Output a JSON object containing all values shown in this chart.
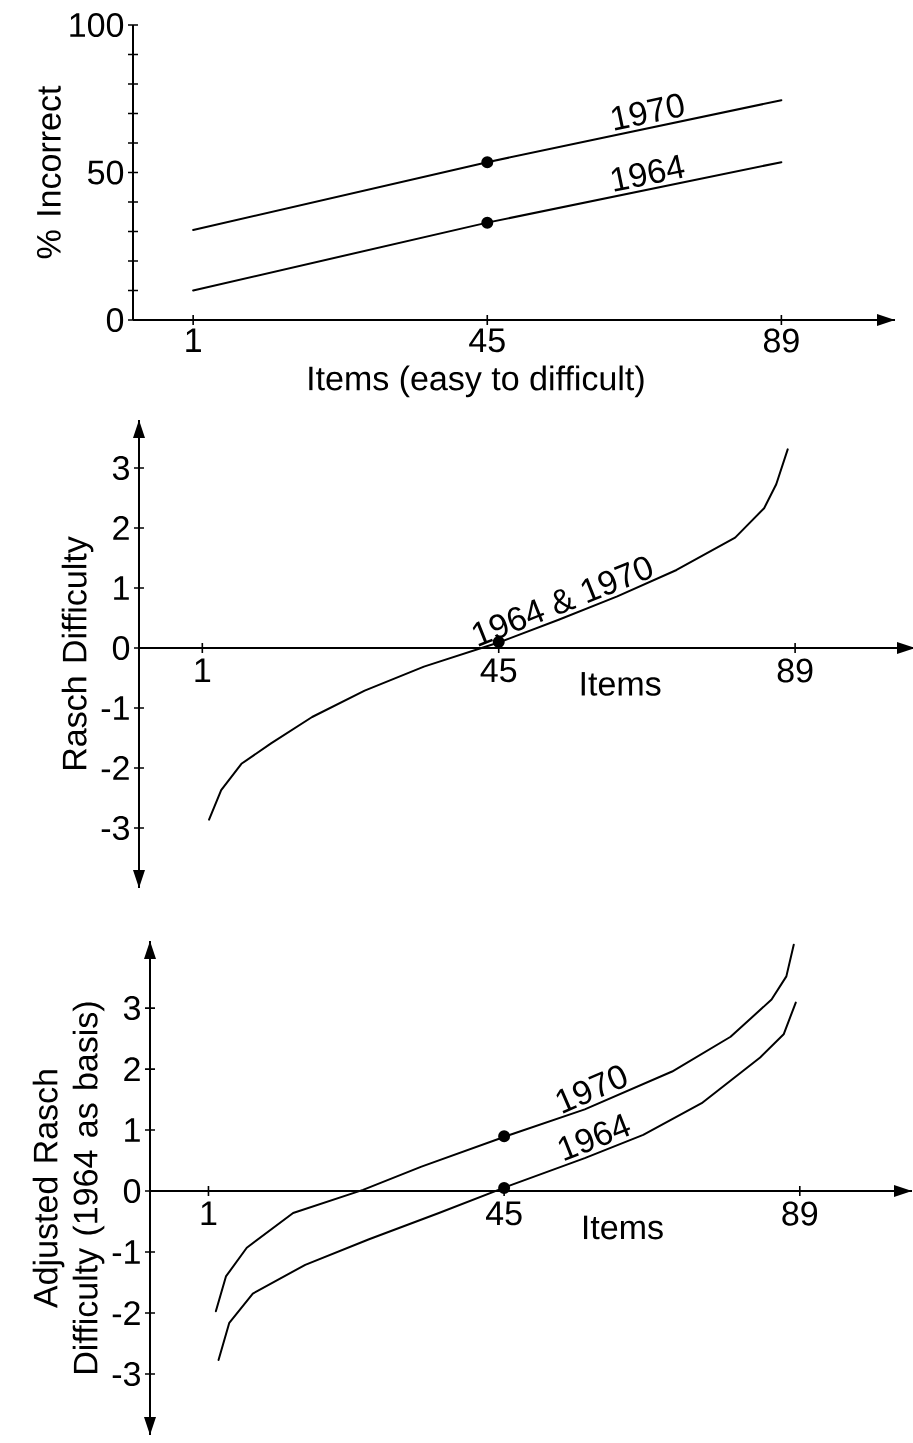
{
  "chart_data": [
    {
      "type": "line",
      "xlabel": "Items (easy to difficult)",
      "ylabel": "% Incorrect",
      "xlim": [
        -8,
        106
      ],
      "ylim": [
        0,
        100
      ],
      "xticks": [
        1,
        45,
        89
      ],
      "yticks": [
        0,
        {
          "value": 10,
          "label": null
        },
        {
          "value": 20,
          "label": null
        },
        {
          "value": 30,
          "label": null
        },
        {
          "value": 40,
          "label": null
        },
        50,
        {
          "value": 60,
          "label": null
        },
        {
          "value": 70,
          "label": null
        },
        {
          "value": 80,
          "label": null
        },
        {
          "value": 90,
          "label": null
        },
        100
      ],
      "series": [
        {
          "name": "1970",
          "color": "#000000",
          "x": [
            1,
            45,
            89
          ],
          "values": [
            30.5,
            53.5,
            74.5
          ]
        },
        {
          "name": "1964",
          "color": "#000000",
          "x": [
            1,
            45,
            89
          ],
          "values": [
            10,
            33,
            53.5
          ]
        },
        {
          "type": "scatter",
          "color": "#000000",
          "x": [
            45,
            45
          ],
          "values": [
            53.5,
            33
          ]
        }
      ]
    },
    {
      "type": "line",
      "xlabel": "Items",
      "ylabel": "Rasch Difficulty",
      "xlim": [
        -8.4,
        106.8
      ],
      "ylim": [
        -4,
        3.8
      ],
      "xticks": [
        1,
        45,
        89
      ],
      "yticks": [
        -3,
        -2,
        -1,
        0,
        1,
        2,
        3
      ],
      "series": [
        {
          "name": "1964 & 1970",
          "color": "#000000",
          "x": [
            2.0,
            3.8,
            6.8,
            11.2,
            17.3,
            25.1,
            33.9,
            45.2,
            53.9,
            62.6,
            71.4,
            80.1,
            84.4,
            86.2,
            87.9
          ],
          "values": [
            -2.86,
            -2.37,
            -1.93,
            -1.59,
            -1.15,
            -0.71,
            -0.31,
            0.1,
            0.47,
            0.86,
            1.3,
            1.84,
            2.33,
            2.73,
            3.31
          ]
        },
        {
          "type": "scatter",
          "color": "#000000",
          "x": [
            45
          ],
          "values": [
            0.1
          ]
        }
      ]
    },
    {
      "type": "line",
      "xlabel": "Items",
      "ylabel": "Adjusted Rasch Difficulty (1964 as basis)",
      "xlim": [
        -7.7,
        105.7
      ],
      "ylim": [
        -4,
        4.1
      ],
      "xticks": [
        1,
        45,
        89
      ],
      "yticks": [
        -3,
        -2,
        -1,
        0,
        1,
        2,
        3
      ],
      "series": [
        {
          "name": "1970",
          "color": "#000000",
          "x": [
            2.1,
            3.6,
            6.7,
            13.6,
            24.0,
            32.7,
            45.8,
            57.0,
            70.0,
            78.7,
            84.8,
            87.0,
            88.1
          ],
          "values": [
            -1.97,
            -1.4,
            -0.93,
            -0.36,
            0.02,
            0.4,
            0.92,
            1.34,
            1.96,
            2.53,
            3.14,
            3.52,
            4.04
          ]
        },
        {
          "name": "1964",
          "color": "#000000",
          "x": [
            2.5,
            4.1,
            7.6,
            15.4,
            24.9,
            35.3,
            45.8,
            57.0,
            65.7,
            74.4,
            83.1,
            86.6,
            88.4
          ],
          "values": [
            -2.77,
            -2.16,
            -1.68,
            -1.21,
            -0.79,
            -0.36,
            0.09,
            0.54,
            0.92,
            1.44,
            2.19,
            2.57,
            3.09
          ]
        },
        {
          "type": "scatter",
          "color": "#000000",
          "x": [
            45,
            45
          ],
          "values": [
            0.9,
            0.05
          ]
        }
      ]
    }
  ]
}
